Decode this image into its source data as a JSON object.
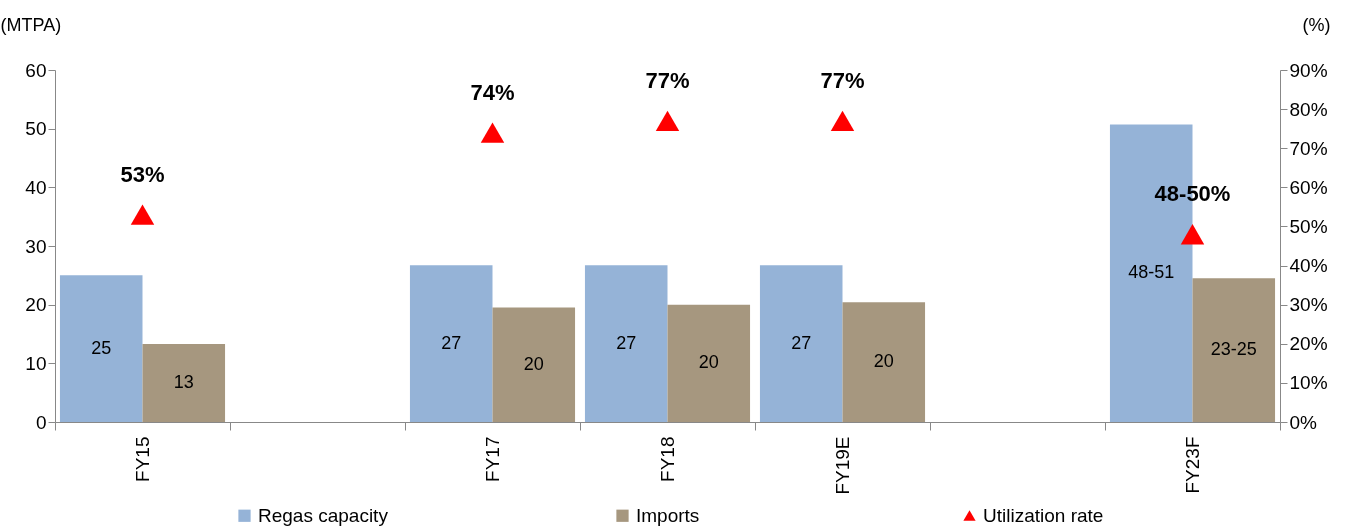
{
  "chart_data": {
    "type": "bar",
    "categories": [
      "FY15",
      null,
      "FY17",
      "FY18",
      "FY19E",
      null,
      "FY23F"
    ],
    "series": [
      {
        "name": "Regas capacity",
        "type": "bar",
        "color": "#95b3d7",
        "values": [
          25,
          null,
          26.7,
          26.7,
          26.7,
          null,
          50.7
        ],
        "value_labels": [
          "25",
          null,
          "27",
          "27",
          "27",
          null,
          "48-51"
        ]
      },
      {
        "name": "Imports",
        "type": "bar",
        "color": "#a6977f",
        "values": [
          13.3,
          null,
          19.5,
          20,
          20.4,
          null,
          24.5
        ],
        "value_labels": [
          "13",
          null,
          "20",
          "20",
          "20",
          null,
          "23-25"
        ]
      },
      {
        "name": "Utilization rate",
        "type": "scatter",
        "axis": "y2",
        "color": "#ff0000",
        "marker": "triangle",
        "values": [
          53,
          null,
          74,
          77,
          77,
          null,
          48
        ],
        "value_labels": [
          "53%",
          null,
          "74%",
          "77%",
          "77%",
          null,
          "48-50%"
        ]
      }
    ],
    "ylabel": "(MTPA)",
    "y2label": "(%)",
    "ylim": [
      0,
      60
    ],
    "yticks": [
      0,
      10,
      20,
      30,
      40,
      50,
      60
    ],
    "y2lim": [
      0,
      90
    ],
    "y2ticks": [
      {
        "value": 0,
        "label": "0%"
      },
      {
        "value": 10,
        "label": "10%"
      },
      {
        "value": 20,
        "label": "20%"
      },
      {
        "value": 30,
        "label": "30%"
      },
      {
        "value": 40,
        "label": "40%"
      },
      {
        "value": 50,
        "label": "50%"
      },
      {
        "value": 60,
        "label": "60%"
      },
      {
        "value": 70,
        "label": "70%"
      },
      {
        "value": 80,
        "label": "80%"
      },
      {
        "value": 90,
        "label": "90%"
      }
    ],
    "legend": "bottom",
    "grid": false
  }
}
